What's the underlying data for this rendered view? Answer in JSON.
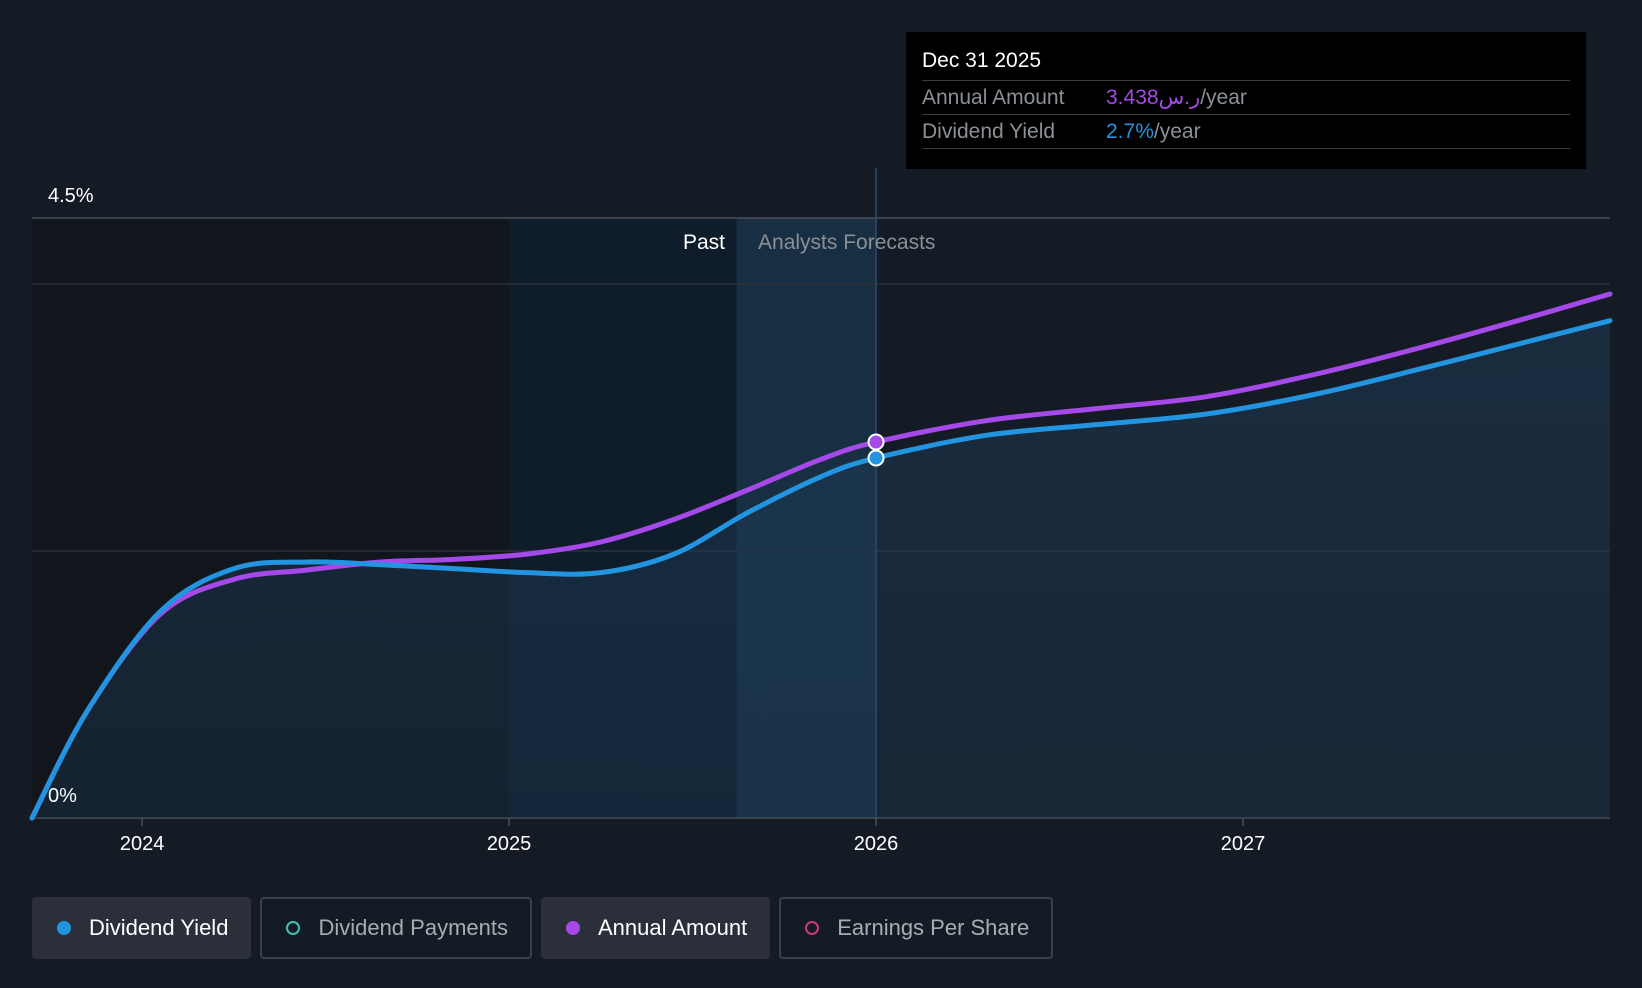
{
  "chart_data": {
    "type": "line",
    "title": "",
    "xlabel": "",
    "ylabel": "",
    "ylim": [
      0,
      4.5
    ],
    "y_unit": "%",
    "xlim": [
      2023.7,
      2028.0
    ],
    "x_ticks": [
      "2024",
      "2025",
      "2026",
      "2027"
    ],
    "y_ticks": [
      "0%",
      "4.5%"
    ],
    "past_label": "Past",
    "forecast_label": "Analysts Forecasts",
    "past_until": 2026.0,
    "series": [
      {
        "name": "Dividend Yield",
        "color": "#2394df",
        "x": [
          2023.7,
          2023.85,
          2024.05,
          2024.25,
          2024.45,
          2024.65,
          2024.85,
          2025.05,
          2025.25,
          2025.45,
          2025.65,
          2025.85,
          2026.0,
          2026.3,
          2026.6,
          2026.9,
          2027.2,
          2027.5,
          2027.8,
          2028.0
        ],
        "y": [
          0.0,
          0.8,
          1.55,
          1.87,
          1.92,
          1.9,
          1.87,
          1.84,
          1.84,
          1.98,
          2.29,
          2.56,
          2.7,
          2.87,
          2.95,
          3.03,
          3.18,
          3.38,
          3.59,
          3.73
        ]
      },
      {
        "name": "Annual Amount",
        "color": "#a54ae8",
        "x": [
          2023.7,
          2023.85,
          2024.05,
          2024.25,
          2024.45,
          2024.65,
          2024.85,
          2025.05,
          2025.25,
          2025.45,
          2025.65,
          2025.85,
          2026.0,
          2026.3,
          2026.6,
          2026.9,
          2027.2,
          2027.5,
          2027.8,
          2028.0
        ],
        "y": [
          0.0,
          0.8,
          1.53,
          1.79,
          1.86,
          1.92,
          1.94,
          1.98,
          2.07,
          2.24,
          2.46,
          2.69,
          2.82,
          2.98,
          3.07,
          3.16,
          3.33,
          3.54,
          3.77,
          3.93
        ]
      }
    ]
  },
  "tooltip": {
    "date": "Dec 31 2025",
    "rows": [
      {
        "label": "Annual Amount",
        "value": "3.438ر.س",
        "unit": "/year",
        "color": "#a54ae8"
      },
      {
        "label": "Dividend Yield",
        "value": "2.7%",
        "unit": "/year",
        "color": "#2394df"
      }
    ]
  },
  "legend": [
    {
      "label": "Dividend Yield",
      "color": "#2394df",
      "active": true,
      "filled": true
    },
    {
      "label": "Dividend Payments",
      "color": "#3ec1b0",
      "active": false,
      "filled": false
    },
    {
      "label": "Annual Amount",
      "color": "#a54ae8",
      "active": true,
      "filled": true
    },
    {
      "label": "Earnings Per Share",
      "color": "#c93c78",
      "active": false,
      "filled": false
    }
  ]
}
